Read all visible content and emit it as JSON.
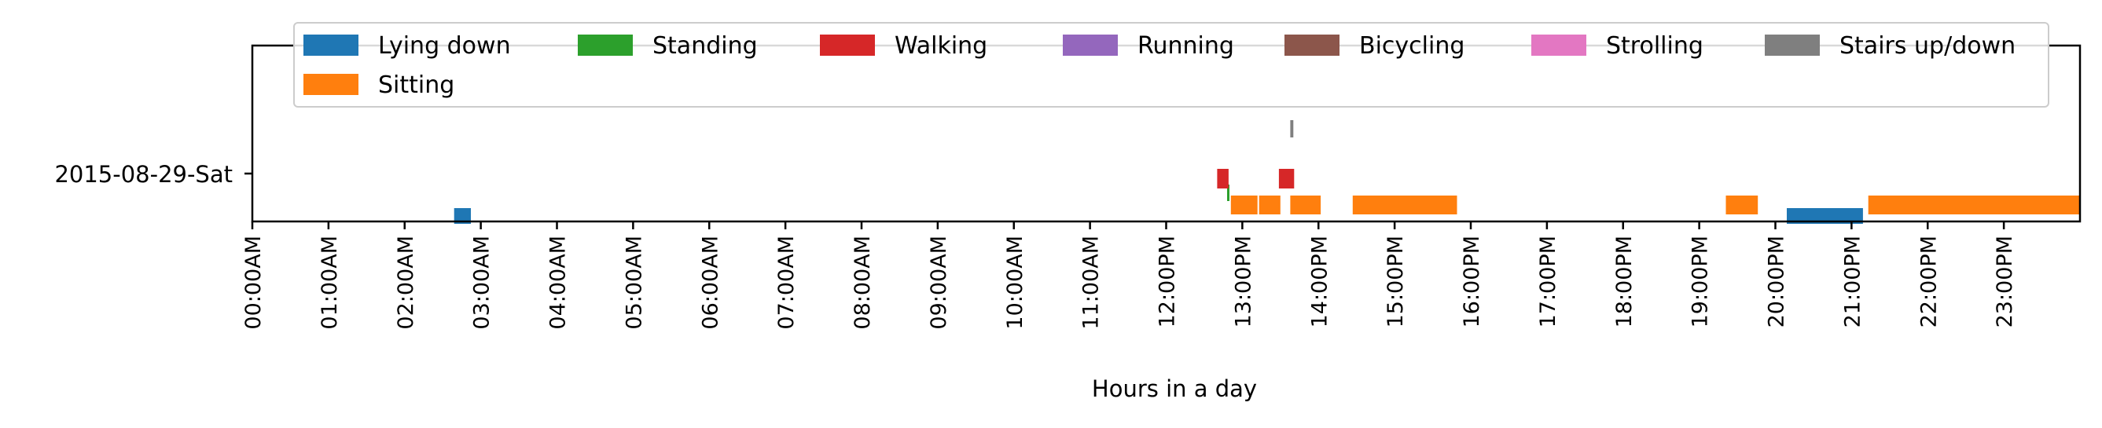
{
  "chart_data": {
    "type": "timeline",
    "title": "",
    "xlabel": "Hours in a day",
    "ylabel": "",
    "xlim": [
      0,
      24
    ],
    "grid": false,
    "legend_position": "top",
    "row_label": "2015-08-29-Sat",
    "x_tick_labels": [
      "00:00AM",
      "01:00AM",
      "02:00AM",
      "03:00AM",
      "04:00AM",
      "05:00AM",
      "06:00AM",
      "07:00AM",
      "08:00AM",
      "09:00AM",
      "10:00AM",
      "11:00AM",
      "12:00PM",
      "13:00PM",
      "14:00PM",
      "15:00PM",
      "16:00PM",
      "17:00PM",
      "18:00PM",
      "19:00PM",
      "20:00PM",
      "21:00PM",
      "22:00PM",
      "23:00PM"
    ],
    "series": [
      {
        "name": "Lying down",
        "color": "#1f77b4",
        "intervals": [
          [
            2.65,
            2.87
          ],
          [
            20.15,
            21.15
          ]
        ]
      },
      {
        "name": "Standing",
        "color": "#2ca02c",
        "intervals": [
          [
            12.8,
            12.83
          ]
        ]
      },
      {
        "name": "Walking",
        "color": "#d62728",
        "intervals": [
          [
            12.67,
            12.82
          ],
          [
            13.48,
            13.68
          ]
        ]
      },
      {
        "name": "Running",
        "color": "#9467bd",
        "intervals": []
      },
      {
        "name": "Bicycling",
        "color": "#8c564b",
        "intervals": []
      },
      {
        "name": "Strolling",
        "color": "#e377c2",
        "intervals": []
      },
      {
        "name": "Stairs up/down",
        "color": "#7f7f7f",
        "intervals": [
          [
            13.63,
            13.67
          ]
        ]
      },
      {
        "name": "Sitting",
        "color": "#ff7f0e",
        "intervals": [
          [
            12.85,
            13.2
          ],
          [
            13.22,
            13.5
          ],
          [
            13.63,
            14.03
          ],
          [
            14.45,
            15.82
          ],
          [
            19.35,
            19.77
          ],
          [
            21.22,
            24.0
          ]
        ]
      }
    ]
  }
}
